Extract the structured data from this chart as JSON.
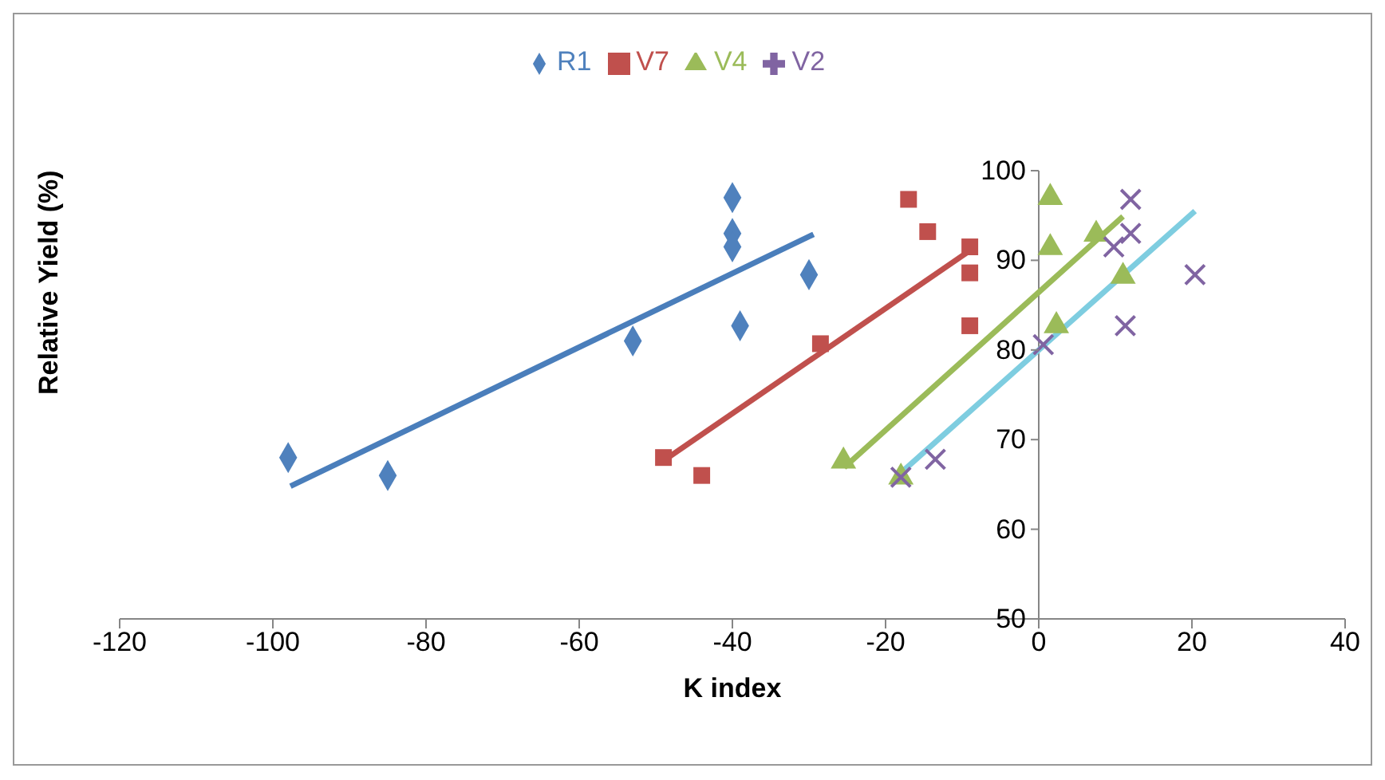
{
  "chart_data": {
    "type": "scatter",
    "xlabel": "K index",
    "ylabel": "Relative Yield (%)",
    "xlim": [
      -120,
      40
    ],
    "xticks": [
      -120,
      -100,
      -80,
      -60,
      -40,
      -20,
      0,
      20,
      40
    ],
    "ylim": [
      50,
      100
    ],
    "yticks": [
      50,
      60,
      70,
      80,
      90,
      100
    ],
    "grid": false,
    "legend": "top",
    "series": [
      {
        "name": "R1",
        "color": "#4f81bd",
        "marker": "diamond",
        "x": [
          -98,
          -85,
          -53,
          -40,
          -40,
          -40,
          -39,
          -30
        ],
        "values": [
          68,
          66,
          81,
          97,
          93,
          91.5,
          82.7,
          88.4
        ]
      },
      {
        "name": "V7",
        "color": "#c0504d",
        "marker": "square",
        "x": [
          -49,
          -44,
          -28.5,
          -17,
          -14.5,
          -9,
          -9,
          -9
        ],
        "values": [
          68,
          66,
          80.7,
          96.8,
          93.2,
          91.5,
          88.6,
          82.7
        ]
      },
      {
        "name": "V4",
        "color": "#9bbb59",
        "marker": "triangle",
        "x": [
          -25.5,
          -18,
          1.5,
          1.5,
          7.5,
          11,
          2.3
        ],
        "values": [
          67.6,
          65.8,
          97,
          91.4,
          92.9,
          88.2,
          82.7
        ]
      },
      {
        "name": "V2",
        "color": "#8064a2",
        "marker": "cross",
        "x": [
          -18,
          -13.5,
          0.6,
          9.8,
          12,
          12,
          11.3,
          20.4
        ],
        "values": [
          65.8,
          67.8,
          80.6,
          91.5,
          93,
          96.8,
          82.7,
          88.4
        ]
      },
      {
        "type": "line",
        "color": "#4a7ebb",
        "marker": "none",
        "x": [
          -97.7,
          -29.4
        ],
        "values": [
          64.8,
          92.9
        ]
      },
      {
        "type": "line",
        "color": "#c0504d",
        "marker": "none",
        "x": [
          -49.4,
          -8.3
        ],
        "values": [
          67.4,
          91.5
        ]
      },
      {
        "type": "line",
        "color": "#9bbb59",
        "marker": "none",
        "x": [
          -25.4,
          11
        ],
        "values": [
          66.9,
          94.9
        ]
      },
      {
        "type": "line",
        "color": "#7ecde0",
        "marker": "none",
        "x": [
          -18,
          20.4
        ],
        "values": [
          66.3,
          95.5
        ]
      }
    ]
  }
}
